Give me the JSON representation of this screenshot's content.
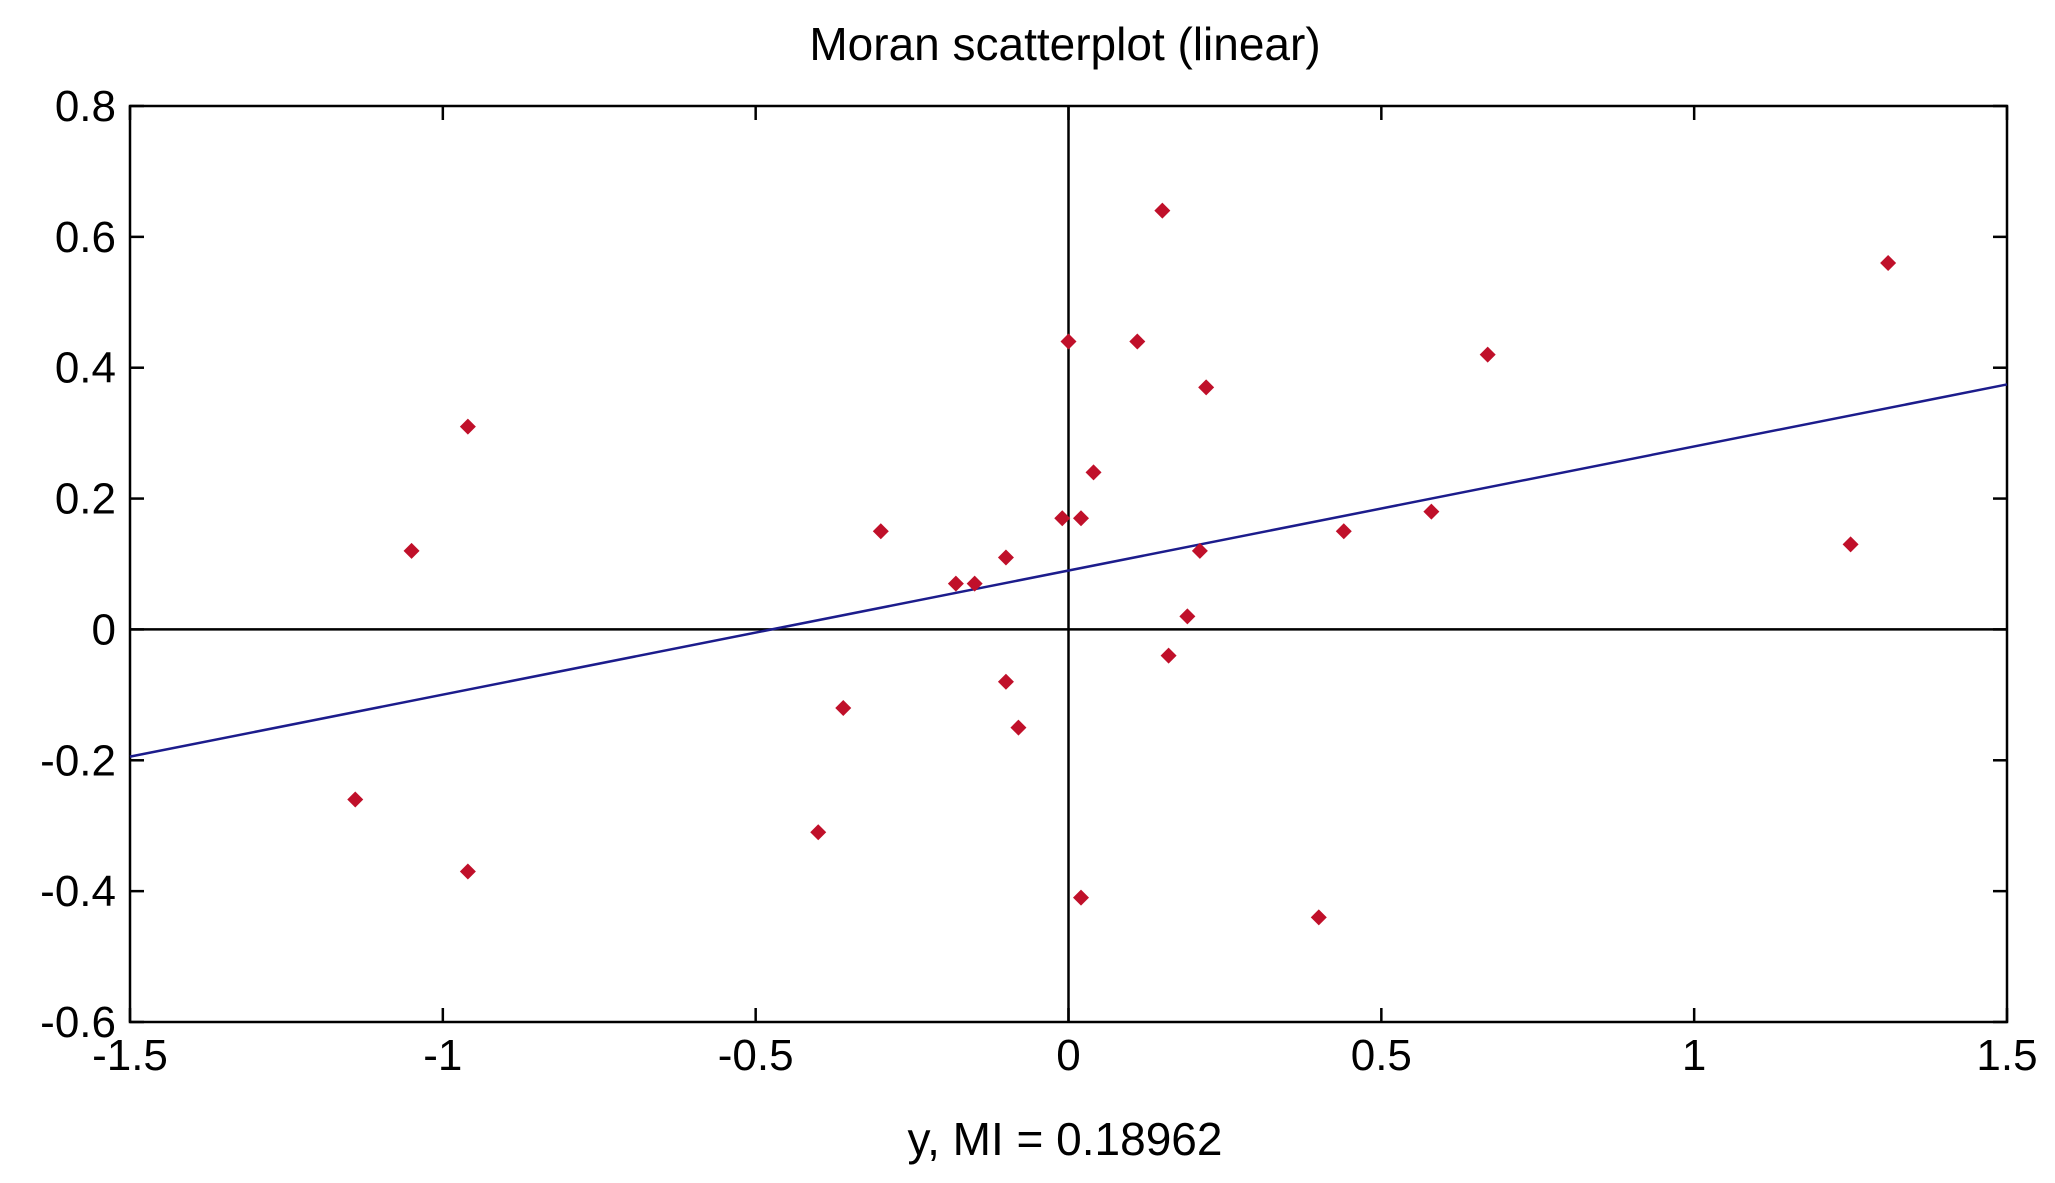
{
  "chart_data": {
    "type": "scatter",
    "title": "Moran scatterplot (linear)",
    "xlabel": "y,  MI = 0.18962",
    "ylabel": "",
    "xlim": [
      -1.5,
      1.5
    ],
    "ylim": [
      -0.6,
      0.8
    ],
    "xticks": [
      -1.5,
      -1,
      -0.5,
      0,
      0.5,
      1,
      1.5
    ],
    "xtick_labels": [
      "-1.5",
      "-1",
      "-0.5",
      "0",
      "0.5",
      "1",
      "1.5"
    ],
    "yticks": [
      0.8,
      0.6,
      0.4,
      0.2,
      0,
      -0.2,
      -0.4,
      -0.6
    ],
    "ytick_labels": [
      "0.8",
      "0.6",
      "0.4",
      "0.2",
      "0",
      "-0.2",
      "-0.4",
      "-0.6"
    ],
    "grid": false,
    "reference_lines": {
      "x": 0,
      "y": 0
    },
    "points": [
      {
        "x": -1.14,
        "y": -0.26
      },
      {
        "x": -1.05,
        "y": 0.12
      },
      {
        "x": -0.96,
        "y": 0.31
      },
      {
        "x": -0.96,
        "y": -0.37
      },
      {
        "x": -0.4,
        "y": -0.31
      },
      {
        "x": -0.36,
        "y": -0.12
      },
      {
        "x": -0.3,
        "y": 0.15
      },
      {
        "x": -0.18,
        "y": 0.07
      },
      {
        "x": -0.15,
        "y": 0.07
      },
      {
        "x": -0.1,
        "y": 0.11
      },
      {
        "x": -0.1,
        "y": -0.08
      },
      {
        "x": -0.08,
        "y": -0.15
      },
      {
        "x": -0.01,
        "y": 0.17
      },
      {
        "x": 0.0,
        "y": 0.44
      },
      {
        "x": 0.02,
        "y": 0.17
      },
      {
        "x": 0.02,
        "y": -0.41
      },
      {
        "x": 0.04,
        "y": 0.24
      },
      {
        "x": 0.11,
        "y": 0.44
      },
      {
        "x": 0.15,
        "y": 0.64
      },
      {
        "x": 0.16,
        "y": -0.04
      },
      {
        "x": 0.19,
        "y": 0.02
      },
      {
        "x": 0.21,
        "y": 0.12
      },
      {
        "x": 0.22,
        "y": 0.37
      },
      {
        "x": 0.4,
        "y": -0.44
      },
      {
        "x": 0.44,
        "y": 0.15
      },
      {
        "x": 0.58,
        "y": 0.18
      },
      {
        "x": 0.67,
        "y": 0.42
      },
      {
        "x": 1.25,
        "y": 0.13
      },
      {
        "x": 1.31,
        "y": 0.56
      }
    ],
    "fit_line": {
      "slope": 0.18962,
      "intercept": 0.09,
      "x_range": [
        -1.5,
        1.5
      ]
    },
    "colors": {
      "points": "#c0102a",
      "fit_line": "#1c1c8c",
      "axes": "#000000"
    }
  }
}
